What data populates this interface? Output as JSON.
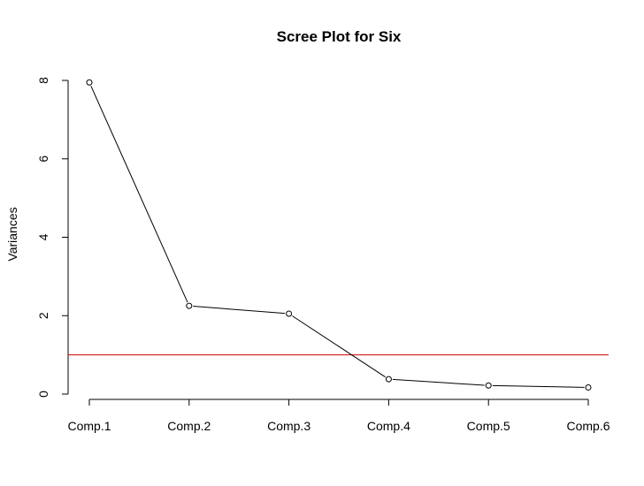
{
  "chart_data": {
    "type": "line",
    "title": "Scree Plot for Six",
    "xlabel": "",
    "ylabel": "Variances",
    "categories": [
      "Comp.1",
      "Comp.2",
      "Comp.3",
      "Comp.4",
      "Comp.5",
      "Comp.6"
    ],
    "series": [
      {
        "name": "Variances",
        "values": [
          7.95,
          2.25,
          2.05,
          0.38,
          0.22,
          0.17
        ]
      }
    ],
    "ylim": [
      0,
      8
    ],
    "yticks": [
      0,
      2,
      4,
      6,
      8
    ],
    "grid": false,
    "reference_line": {
      "y": 1,
      "color": "#cc0000"
    },
    "marker": "open-circle",
    "colors": {
      "line": "#000000",
      "reference": "#cc0000"
    }
  }
}
